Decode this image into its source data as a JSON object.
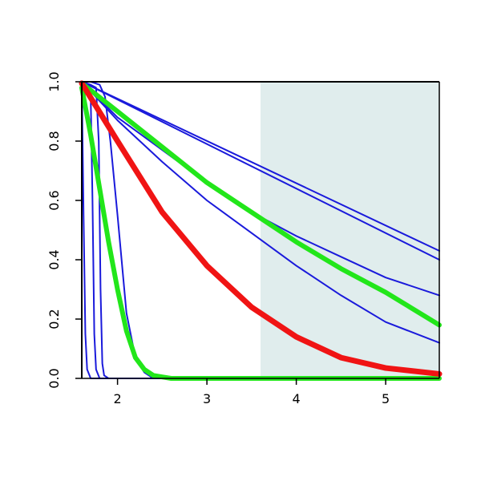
{
  "chart_data": {
    "type": "line",
    "title": "",
    "xlabel": "",
    "ylabel": "",
    "xlim": [
      1.6,
      5.6
    ],
    "ylim": [
      0,
      1
    ],
    "x_ticks": [
      2,
      3,
      4,
      5
    ],
    "x_tick_labels": [
      "2",
      "3",
      "4",
      "5"
    ],
    "y_ticks": [
      0,
      0.2,
      0.4,
      0.6,
      0.8,
      1
    ],
    "y_tick_labels": [
      "0.0",
      "0.2",
      "0.4",
      "0.6",
      "0.8",
      "1.0"
    ],
    "grid": false,
    "legend": "none",
    "shaded_region": {
      "x_from": 3.6,
      "x_to": 5.6,
      "color": "#e0eded"
    },
    "series": [
      {
        "color": "#1a1adb",
        "width": 2,
        "x": [
          1.6,
          5.6
        ],
        "y": [
          1.0,
          0.43
        ]
      },
      {
        "color": "#1a1adb",
        "width": 2,
        "x": [
          1.6,
          5.6
        ],
        "y": [
          1.0,
          0.4
        ]
      },
      {
        "color": "#1a1adb",
        "width": 2,
        "x": [
          1.6,
          2.0,
          2.5,
          3.0,
          3.5,
          4.0,
          4.5,
          5.0,
          5.6
        ],
        "y": [
          1.0,
          0.88,
          0.77,
          0.66,
          0.56,
          0.48,
          0.41,
          0.34,
          0.28
        ]
      },
      {
        "color": "#1a1adb",
        "width": 2,
        "x": [
          1.6,
          2.0,
          2.5,
          3.0,
          3.5,
          4.0,
          4.5,
          5.0,
          5.6
        ],
        "y": [
          1.0,
          0.87,
          0.73,
          0.6,
          0.49,
          0.38,
          0.28,
          0.19,
          0.12
        ]
      },
      {
        "color": "#1a1adb",
        "width": 2,
        "x": [
          1.6,
          1.62,
          1.64,
          1.66,
          1.7,
          5.6
        ],
        "y": [
          1.0,
          0.55,
          0.15,
          0.03,
          0.0,
          0.0
        ]
      },
      {
        "color": "#1a1adb",
        "width": 2,
        "x": [
          1.6,
          1.66,
          1.7,
          1.72,
          1.74,
          1.76,
          1.8,
          5.6
        ],
        "y": [
          1.0,
          0.99,
          0.95,
          0.6,
          0.15,
          0.03,
          0.0,
          0.0
        ]
      },
      {
        "color": "#1a1adb",
        "width": 2,
        "x": [
          1.6,
          1.7,
          1.76,
          1.79,
          1.81,
          1.83,
          1.85,
          1.9,
          5.6
        ],
        "y": [
          1.0,
          0.99,
          0.98,
          0.8,
          0.3,
          0.05,
          0.01,
          0.0,
          0.0
        ]
      },
      {
        "color": "#1a1adb",
        "width": 2,
        "x": [
          1.6,
          1.7,
          1.8,
          1.86,
          1.92,
          2.0,
          2.1,
          2.2,
          2.3,
          2.4,
          5.6
        ],
        "y": [
          1.0,
          1.0,
          0.99,
          0.95,
          0.8,
          0.55,
          0.22,
          0.07,
          0.02,
          0.0,
          0.0
        ]
      },
      {
        "color": "#1a1adb",
        "width": 2,
        "x": [
          1.6,
          1.7,
          1.8,
          1.9,
          2.0,
          2.1,
          2.2,
          2.3,
          2.4,
          2.5,
          5.6
        ],
        "y": [
          1.0,
          0.83,
          0.66,
          0.48,
          0.3,
          0.16,
          0.07,
          0.03,
          0.01,
          0.0,
          0.0
        ]
      },
      {
        "color": "#22e61a",
        "width": 6,
        "x": [
          1.6,
          1.7,
          1.8,
          1.9,
          2.0,
          2.1,
          2.2,
          2.3,
          2.4,
          2.5,
          2.6,
          5.6
        ],
        "y": [
          0.98,
          0.82,
          0.64,
          0.46,
          0.3,
          0.16,
          0.07,
          0.03,
          0.01,
          0.005,
          0.0,
          0.0
        ]
      },
      {
        "color": "#22e61a",
        "width": 6,
        "x": [
          1.6,
          2.0,
          2.5,
          3.0,
          3.5,
          4.0,
          4.5,
          5.0,
          5.6
        ],
        "y": [
          0.995,
          0.9,
          0.78,
          0.66,
          0.56,
          0.46,
          0.37,
          0.29,
          0.18
        ]
      },
      {
        "color": "#f01414",
        "width": 7,
        "x": [
          1.6,
          2.0,
          2.5,
          3.0,
          3.5,
          4.0,
          4.5,
          5.0,
          5.6
        ],
        "y": [
          0.995,
          0.8,
          0.56,
          0.38,
          0.24,
          0.14,
          0.07,
          0.035,
          0.015
        ]
      }
    ]
  }
}
